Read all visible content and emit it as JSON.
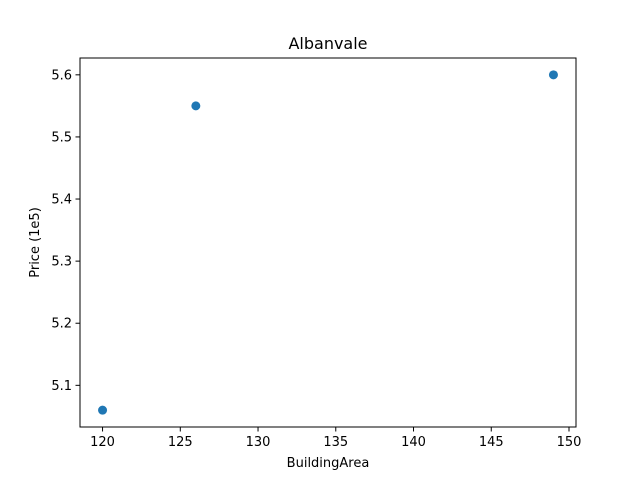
{
  "chart_data": {
    "type": "scatter",
    "title": "Albanvale",
    "xlabel": "BuildingArea",
    "ylabel": "Price (1e5)",
    "xlim": [
      118.55,
      150.45
    ],
    "ylim": [
      5.0329,
      5.6271
    ],
    "x_ticks": [
      120,
      125,
      130,
      135,
      140,
      145,
      150
    ],
    "y_ticks": [
      5.1,
      5.2,
      5.3,
      5.4,
      5.5,
      5.6
    ],
    "grid": false,
    "series": [
      {
        "color": "#1f77b4",
        "points": [
          {
            "x": 120,
            "y": 5.06
          },
          {
            "x": 126,
            "y": 5.55
          },
          {
            "x": 149,
            "y": 5.6
          }
        ]
      }
    ]
  }
}
